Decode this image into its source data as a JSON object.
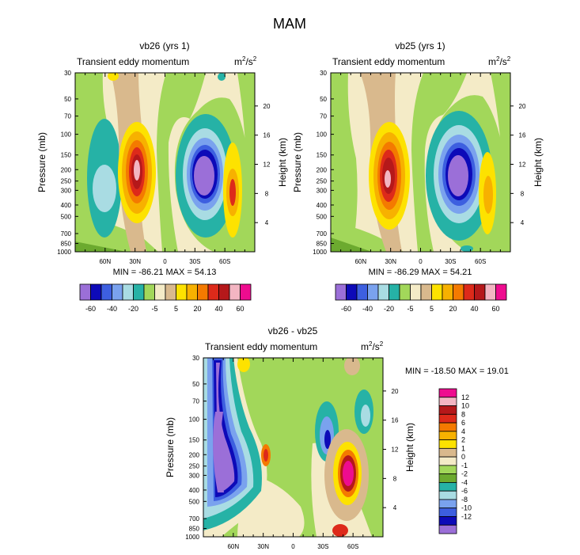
{
  "page_title": "MAM",
  "colors": {
    "main": [
      "#9b6fd8",
      "#0d0ab8",
      "#3d5fe0",
      "#7aa2ee",
      "#a9dce3",
      "#26b2a6",
      "#a2d75a",
      "#f4ebc7",
      "#d9b98d",
      "#fde200",
      "#f7b100",
      "#f47a00",
      "#dd2a1a",
      "#b5181a",
      "#f3b5c2",
      "#ee0c8f"
    ],
    "diff": [
      "#9b6fd8",
      "#0d0ab8",
      "#3d5fe0",
      "#7aa2ee",
      "#a9dce3",
      "#26b2a6",
      "#6caa2f",
      "#a2d75a",
      "#f4ebc7",
      "#d9b98d",
      "#fde200",
      "#f7b100",
      "#f47a00",
      "#dd2a1a",
      "#b5181a",
      "#f3b5c2",
      "#ee0c8f"
    ]
  },
  "chart_data": [
    {
      "type": "heatmap",
      "title": "vb26 (yrs 1)",
      "subtitle": "Transient eddy momentum",
      "units_base": "m",
      "units_sup1": "2",
      "units_mid": "/s",
      "units_sup2": "2",
      "ylabel": "Pressure (mb)",
      "ylabel_right": "Height (km)",
      "y_ticks": [
        "30",
        "50",
        "70",
        "100",
        "150",
        "200",
        "250",
        "300",
        "400",
        "500",
        "700",
        "850",
        "1000"
      ],
      "y_ticks_right": [
        "20",
        "16",
        "12",
        "8",
        "4"
      ],
      "x_ticks": [
        "60N",
        "30N",
        "0",
        "30S",
        "60S"
      ],
      "min_max": "MIN = -86.21  MAX = 54.13",
      "colorbar_labels": [
        "-60",
        "-40",
        "-20",
        "-5",
        "5",
        "20",
        "40",
        "60"
      ]
    },
    {
      "type": "heatmap",
      "title": "vb25 (yrs 1)",
      "subtitle": "Transient eddy momentum",
      "units_base": "m",
      "units_sup1": "2",
      "units_mid": "/s",
      "units_sup2": "2",
      "ylabel": "Pressure (mb)",
      "ylabel_right": "Height (km)",
      "y_ticks": [
        "30",
        "50",
        "70",
        "100",
        "150",
        "200",
        "250",
        "300",
        "400",
        "500",
        "700",
        "850",
        "1000"
      ],
      "y_ticks_right": [
        "20",
        "16",
        "12",
        "8",
        "4"
      ],
      "x_ticks": [
        "60N",
        "30N",
        "0",
        "30S",
        "60S"
      ],
      "min_max": "MIN = -86.29  MAX = 54.21",
      "colorbar_labels": [
        "-60",
        "-40",
        "-20",
        "-5",
        "5",
        "20",
        "40",
        "60"
      ]
    },
    {
      "type": "heatmap",
      "title": "vb26 - vb25",
      "subtitle": "Transient eddy momentum",
      "units_base": "m",
      "units_sup1": "2",
      "units_mid": "/s",
      "units_sup2": "2",
      "ylabel": "Pressure (mb)",
      "ylabel_right": "Height (km)",
      "y_ticks": [
        "30",
        "50",
        "70",
        "100",
        "150",
        "200",
        "250",
        "300",
        "400",
        "500",
        "700",
        "850",
        "1000"
      ],
      "y_ticks_right": [
        "20",
        "16",
        "12",
        "8",
        "4"
      ],
      "x_ticks": [
        "60N",
        "30N",
        "0",
        "30S",
        "60S"
      ],
      "min_max": "MIN = -18.50  MAX = 19.01",
      "colorbar_labels": [
        "12",
        "10",
        "8",
        "6",
        "4",
        "2",
        "1",
        "0",
        "-1",
        "-2",
        "-4",
        "-6",
        "-8",
        "-10",
        "-12"
      ]
    }
  ]
}
